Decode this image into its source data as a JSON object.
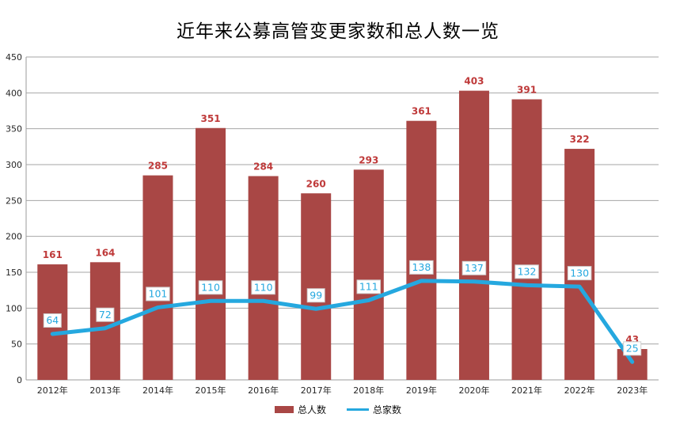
{
  "chart_data": {
    "type": "bar",
    "combo": "bar+line",
    "title": "近年来公募高管变更家数和总人数一览",
    "categories": [
      "2012年",
      "2013年",
      "2014年",
      "2015年",
      "2016年",
      "2017年",
      "2018年",
      "2019年",
      "2020年",
      "2021年",
      "2022年",
      "2023年"
    ],
    "series": [
      {
        "name": "总人数",
        "type": "bar",
        "color": "#a94745",
        "label_color": "#bf3a3a",
        "values": [
          161,
          164,
          285,
          351,
          284,
          260,
          293,
          361,
          403,
          391,
          322,
          43
        ]
      },
      {
        "name": "总家数",
        "type": "line",
        "color": "#25a8df",
        "label_color": "#25a8df",
        "values": [
          64,
          72,
          101,
          110,
          110,
          99,
          111,
          138,
          137,
          132,
          130,
          25
        ]
      }
    ],
    "ylim": [
      0,
      450
    ],
    "ytick_step": 50,
    "grid": true,
    "legend_position": "bottom",
    "grid_color": "#a6a6a6",
    "axis_color": "#9b9b9b",
    "tick_label_color": "#262626",
    "point_label_box_fill": "#ffffff",
    "point_label_box_border": "#cfcfcf"
  }
}
